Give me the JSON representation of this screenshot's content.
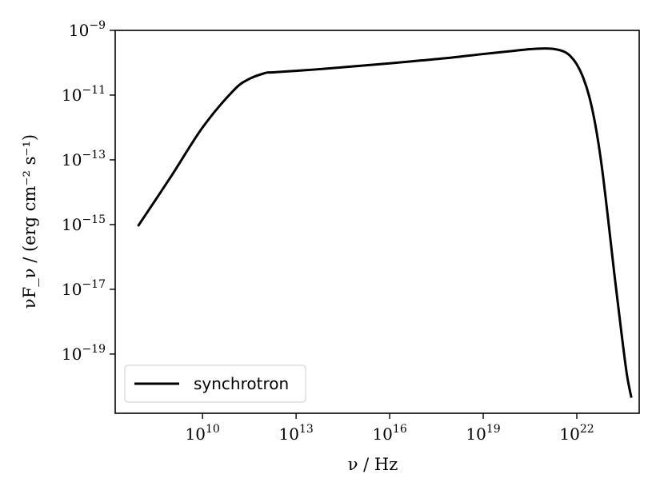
{
  "chart_data": {
    "type": "line",
    "title": "",
    "xlabel": "ν / Hz",
    "ylabel": "νF_ν / (erg cm⁻² s⁻¹)",
    "xscale": "log",
    "yscale": "log",
    "xlim_log10": [
      7.2,
      24.0
    ],
    "ylim_log10": [
      -20.83,
      -9.0
    ],
    "x_ticks": [
      {
        "base": "10",
        "exp": "10",
        "log10": 10
      },
      {
        "base": "10",
        "exp": "13",
        "log10": 13
      },
      {
        "base": "10",
        "exp": "16",
        "log10": 16
      },
      {
        "base": "10",
        "exp": "19",
        "log10": 19
      },
      {
        "base": "10",
        "exp": "22",
        "log10": 22
      }
    ],
    "y_ticks": [
      {
        "base": "10",
        "exp": "−9",
        "log10": -9
      },
      {
        "base": "10",
        "exp": "−11",
        "log10": -11
      },
      {
        "base": "10",
        "exp": "−13",
        "log10": -13
      },
      {
        "base": "10",
        "exp": "−15",
        "log10": -15
      },
      {
        "base": "10",
        "exp": "−17",
        "log10": -17
      },
      {
        "base": "10",
        "exp": "−19",
        "log10": -19
      }
    ],
    "grid": false,
    "legend_position": "lower-left",
    "series": [
      {
        "name": "synchrotron",
        "color": "#000000",
        "log10_x": [
          7.93,
          9.0,
          10.0,
          11.0,
          11.5,
          12.0,
          12.2,
          12.5,
          13.0,
          14.0,
          15.0,
          16.0,
          17.0,
          18.0,
          19.0,
          20.0,
          20.5,
          21.0,
          21.3,
          21.6,
          21.8,
          22.0,
          22.2,
          22.4,
          22.6,
          22.8,
          23.0,
          23.2,
          23.4,
          23.6,
          23.75
        ],
        "log10_y": [
          -15.05,
          -13.5,
          -12.0,
          -10.85,
          -10.5,
          -10.32,
          -10.3,
          -10.28,
          -10.25,
          -10.18,
          -10.1,
          -10.02,
          -9.93,
          -9.84,
          -9.73,
          -9.63,
          -9.58,
          -9.56,
          -9.58,
          -9.66,
          -9.8,
          -10.05,
          -10.45,
          -11.05,
          -11.95,
          -13.2,
          -14.8,
          -16.5,
          -18.1,
          -19.6,
          -20.35
        ]
      }
    ]
  }
}
